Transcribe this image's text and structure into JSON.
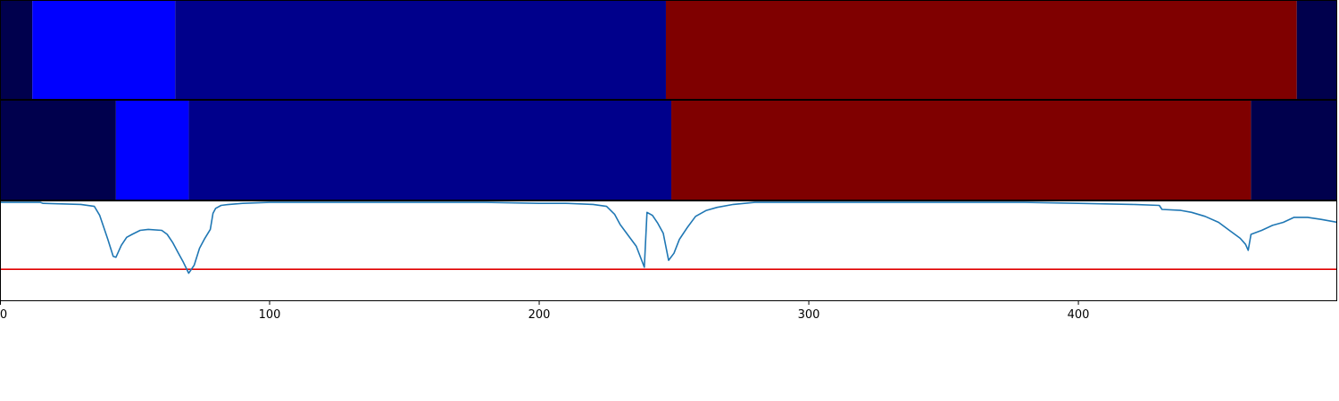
{
  "chart_data": [
    {
      "type": "heatmap",
      "panel": "top",
      "segments": [
        {
          "start": 0,
          "end": 12,
          "color": "#00004d"
        },
        {
          "start": 12,
          "end": 65,
          "color": "#0000ff"
        },
        {
          "start": 65,
          "end": 247,
          "color": "#00008b"
        },
        {
          "start": 247,
          "end": 481,
          "color": "#7f0000"
        },
        {
          "start": 481,
          "end": 496,
          "color": "#00004d"
        }
      ]
    },
    {
      "type": "heatmap",
      "panel": "middle",
      "segments": [
        {
          "start": 0,
          "end": 43,
          "color": "#00004d"
        },
        {
          "start": 43,
          "end": 70,
          "color": "#0000ff"
        },
        {
          "start": 70,
          "end": 249,
          "color": "#00008b"
        },
        {
          "start": 249,
          "end": 464,
          "color": "#7f0000"
        },
        {
          "start": 464,
          "end": 496,
          "color": "#00004d"
        }
      ]
    },
    {
      "type": "line",
      "panel": "bottom",
      "xlim": [
        0,
        496
      ],
      "ylim": [
        0,
        1
      ],
      "xticks": [
        "0",
        "100",
        "200",
        "300",
        "400"
      ],
      "xtick_values": [
        0,
        100,
        200,
        300,
        400
      ],
      "threshold": {
        "y": 0.32,
        "color": "#e00000"
      },
      "series": [
        {
          "color": "#1f77b4",
          "points": [
            [
              0,
              0.99
            ],
            [
              15,
              0.99
            ],
            [
              16,
              0.98
            ],
            [
              30,
              0.97
            ],
            [
              35,
              0.95
            ],
            [
              37,
              0.86
            ],
            [
              40,
              0.62
            ],
            [
              42,
              0.45
            ],
            [
              43,
              0.44
            ],
            [
              45,
              0.56
            ],
            [
              47,
              0.64
            ],
            [
              49,
              0.67
            ],
            [
              52,
              0.71
            ],
            [
              55,
              0.72
            ],
            [
              60,
              0.71
            ],
            [
              62,
              0.67
            ],
            [
              64,
              0.59
            ],
            [
              66,
              0.49
            ],
            [
              68,
              0.39
            ],
            [
              70,
              0.28
            ],
            [
              72,
              0.36
            ],
            [
              74,
              0.53
            ],
            [
              76,
              0.63
            ],
            [
              78,
              0.72
            ],
            [
              79,
              0.88
            ],
            [
              80,
              0.93
            ],
            [
              82,
              0.96
            ],
            [
              85,
              0.97
            ],
            [
              90,
              0.98
            ],
            [
              100,
              0.99
            ],
            [
              120,
              0.99
            ],
            [
              150,
              0.99
            ],
            [
              180,
              0.99
            ],
            [
              200,
              0.98
            ],
            [
              210,
              0.98
            ],
            [
              220,
              0.97
            ],
            [
              225,
              0.95
            ],
            [
              228,
              0.87
            ],
            [
              230,
              0.77
            ],
            [
              233,
              0.66
            ],
            [
              236,
              0.55
            ],
            [
              239,
              0.34
            ],
            [
              240,
              0.89
            ],
            [
              242,
              0.86
            ],
            [
              244,
              0.78
            ],
            [
              246,
              0.68
            ],
            [
              248,
              0.41
            ],
            [
              250,
              0.48
            ],
            [
              252,
              0.62
            ],
            [
              255,
              0.74
            ],
            [
              258,
              0.85
            ],
            [
              262,
              0.91
            ],
            [
              266,
              0.94
            ],
            [
              272,
              0.97
            ],
            [
              280,
              0.99
            ],
            [
              290,
              0.99
            ],
            [
              300,
              0.99
            ],
            [
              340,
              0.99
            ],
            [
              380,
              0.99
            ],
            [
              400,
              0.98
            ],
            [
              420,
              0.97
            ],
            [
              430,
              0.96
            ],
            [
              431,
              0.92
            ],
            [
              438,
              0.91
            ],
            [
              442,
              0.89
            ],
            [
              447,
              0.85
            ],
            [
              452,
              0.79
            ],
            [
              456,
              0.71
            ],
            [
              460,
              0.63
            ],
            [
              462,
              0.57
            ],
            [
              463,
              0.51
            ],
            [
              464,
              0.67
            ],
            [
              468,
              0.71
            ],
            [
              472,
              0.76
            ],
            [
              476,
              0.79
            ],
            [
              480,
              0.84
            ],
            [
              485,
              0.84
            ],
            [
              490,
              0.82
            ],
            [
              496,
              0.79
            ]
          ]
        }
      ]
    }
  ]
}
